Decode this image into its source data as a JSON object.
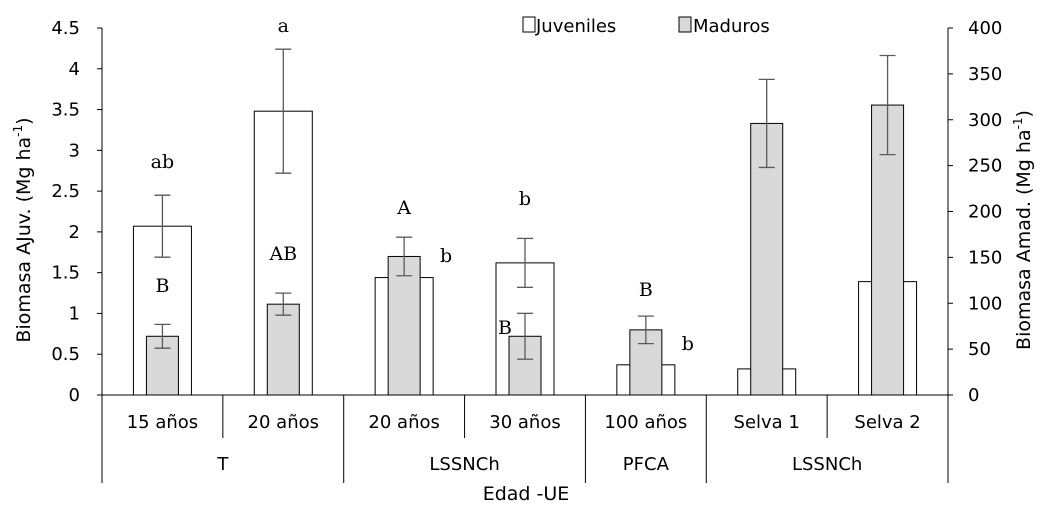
{
  "chart_data": {
    "type": "bar",
    "x_title": "Edad -UE",
    "y_left_title": "Biomasa AJuv. (Mg ha",
    "y_right_title": "Biomasa Amad. (Mg ha",
    "unit_superscript": "-1",
    "y_left_range": [
      0,
      4.5
    ],
    "y_right_range": [
      0,
      400
    ],
    "y_left_ticks": [
      "0",
      "0.5",
      "1",
      "1.5",
      "2",
      "2.5",
      "3",
      "3.5",
      "4",
      "4.5"
    ],
    "y_right_ticks": [
      "0",
      "50",
      "100",
      "150",
      "200",
      "250",
      "300",
      "350",
      "400"
    ],
    "categories": [
      "15 años",
      "20 años",
      "20 años",
      "30 años",
      "100 años",
      "Selva 1",
      "Selva 2"
    ],
    "groups": [
      {
        "label": "T",
        "span": [
          0,
          1
        ]
      },
      {
        "label": "LSSNCh",
        "span": [
          2,
          3
        ]
      },
      {
        "label": "PFCA",
        "span": [
          4,
          4
        ]
      },
      {
        "label": "LSSNCh",
        "span": [
          5,
          6
        ]
      }
    ],
    "legend": [
      "Juveniles",
      "Maduros"
    ],
    "series": [
      {
        "name": "Juveniles",
        "axis": "left",
        "color": "#ffffff",
        "values": [
          2.07,
          3.48,
          1.44,
          1.62,
          0.37,
          0.32,
          1.39
        ],
        "errors": [
          0.38,
          0.76,
          null,
          0.3,
          null,
          null,
          null
        ],
        "labels": [
          "ab",
          "a",
          "b",
          "b",
          "b",
          "",
          ""
        ]
      },
      {
        "name": "Maduros",
        "axis": "right",
        "color": "#d9d9d9",
        "values": [
          64,
          99,
          151,
          64,
          71,
          296,
          316
        ],
        "errors": [
          13,
          12,
          21,
          25,
          15,
          48,
          54
        ],
        "labels": [
          "B",
          "AB",
          "A",
          "B",
          "B",
          "",
          ""
        ]
      }
    ]
  }
}
